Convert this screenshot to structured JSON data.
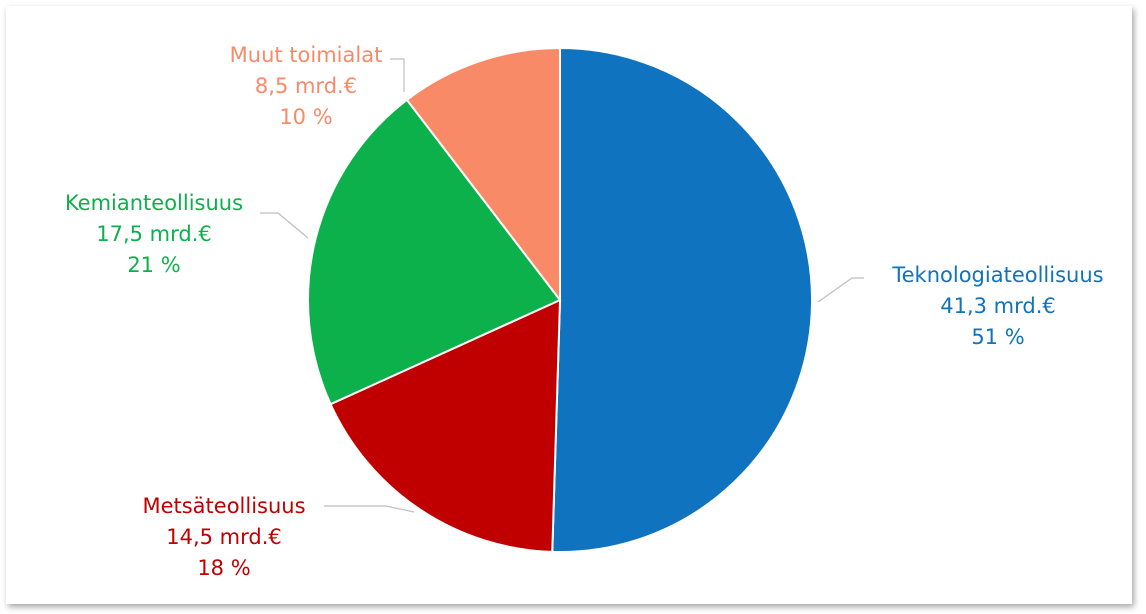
{
  "chart_data": {
    "type": "pie",
    "title": "",
    "slices": [
      {
        "name": "Teknologiateollisuus",
        "amount": "41,3 mrd.€",
        "percent": "51 %",
        "value": 41.3,
        "share": 51,
        "color": "#0F73BF"
      },
      {
        "name": "Metsäteollisuus",
        "amount": "14,5 mrd.€",
        "percent": "18 %",
        "value": 14.5,
        "share": 18,
        "color": "#C00000"
      },
      {
        "name": "Kemianteollisuus",
        "amount": "17,5 mrd.€",
        "percent": "21 %",
        "value": 17.5,
        "share": 21,
        "color": "#0CB14B"
      },
      {
        "name": "Muut toimialat",
        "amount": "8,5 mrd.€",
        "percent": "10 %",
        "value": 8.5,
        "share": 10,
        "color": "#F98A68"
      }
    ],
    "legend": "none",
    "start_angle": "12 o'clock",
    "direction": "clockwise"
  }
}
